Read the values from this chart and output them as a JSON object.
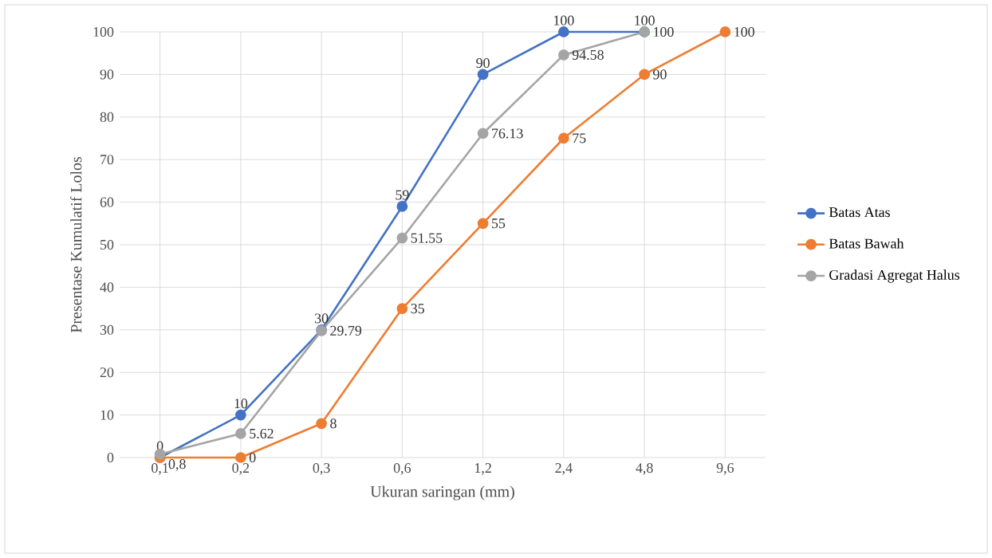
{
  "chart_data": {
    "type": "line",
    "xlabel": "Ukuran saringan (mm)",
    "ylabel": "Presentase Kumulatif Lolos",
    "categories": [
      "0,1",
      "0,2",
      "0,3",
      "0,6",
      "1,2",
      "2,4",
      "4,8",
      "9,6"
    ],
    "ylim": [
      0,
      100
    ],
    "yticks": [
      0,
      10,
      20,
      30,
      40,
      50,
      60,
      70,
      80,
      90,
      100
    ],
    "grid": true,
    "legend": "right",
    "marker": "circle",
    "series": [
      {
        "name": "Batas Atas",
        "color": "#4472c4",
        "values": [
          0,
          10,
          30,
          59,
          90,
          100,
          100,
          null
        ],
        "value_labels": [
          "0",
          "10",
          "30",
          "59",
          "90",
          "100",
          "100",
          null
        ]
      },
      {
        "name": "Batas Bawah",
        "color": "#ed7d31",
        "values": [
          0,
          0,
          8,
          35,
          55,
          75,
          90,
          100
        ],
        "value_labels": [
          null,
          "0",
          "8",
          "35",
          "55",
          "75",
          "90",
          "100"
        ]
      },
      {
        "name": "Gradasi Agregat Halus",
        "color": "#a5a5a5",
        "values": [
          0.8,
          5.62,
          29.79,
          51.55,
          76.13,
          94.58,
          100,
          null
        ],
        "value_labels": [
          "0,8",
          "5.62",
          "29.79",
          "51.55",
          "76.13",
          "94.58",
          "100",
          null
        ]
      }
    ]
  }
}
